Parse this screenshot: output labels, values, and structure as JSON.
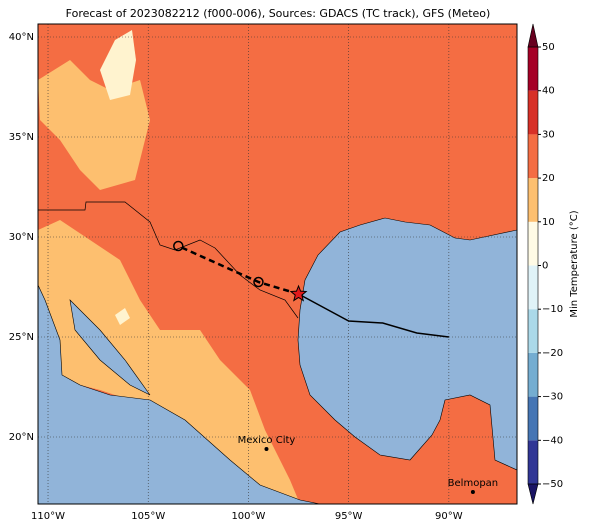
{
  "title": "Forecast of 2023082212 (f000-006), Sources: GDACS (TC track), GFS (Meteo)",
  "map": {
    "lon_range": [
      -110.5,
      -86.6
    ],
    "lat_range": [
      16.65,
      40.65
    ],
    "grid": true,
    "lon_ticks": [
      {
        "value": -110,
        "label": "110°W"
      },
      {
        "value": -105,
        "label": "105°W"
      },
      {
        "value": -100,
        "label": "100°W"
      },
      {
        "value": -95,
        "label": "95°W"
      },
      {
        "value": -90,
        "label": "90°W"
      }
    ],
    "lat_ticks": [
      {
        "value": 20,
        "label": "20°N"
      },
      {
        "value": 25,
        "label": "25°N"
      },
      {
        "value": 30,
        "label": "30°N"
      },
      {
        "value": 35,
        "label": "35°N"
      },
      {
        "value": 40,
        "label": "40°N"
      }
    ]
  },
  "colorbar": {
    "label": "Min Temperature (°C)",
    "range": [
      -50,
      50
    ],
    "levels": [
      -50,
      -40,
      -30,
      -20,
      -10,
      0,
      10,
      20,
      30,
      40,
      50
    ],
    "colors": [
      "#313695",
      "#4575b4",
      "#74add1",
      "#abd9e9",
      "#e0f3f8",
      "#fffbe6",
      "#fdbf6f",
      "#f46d43",
      "#d73027",
      "#a50026"
    ],
    "under_color": "#1a1464",
    "over_color": "#67001f",
    "ticks": [
      {
        "value": -50,
        "label": "−50"
      },
      {
        "value": -40,
        "label": "−40"
      },
      {
        "value": -30,
        "label": "−30"
      },
      {
        "value": -20,
        "label": "−20"
      },
      {
        "value": -10,
        "label": "−10"
      },
      0,
      10,
      20,
      30,
      40,
      50
    ]
  },
  "track": {
    "past": {
      "lon": [
        -97.5,
        -95,
        -93.3,
        -91.6,
        -90
      ],
      "lat": [
        27.15,
        25.8,
        25.7,
        25.2,
        25.0
      ]
    },
    "forecast": {
      "lon": [
        -97.5,
        -99.5,
        -103.5
      ],
      "lat": [
        27.15,
        27.75,
        29.55
      ]
    }
  },
  "cities": [
    {
      "name": "Mexico City",
      "lon": -99.1,
      "lat": 19.4
    },
    {
      "name": "Belmopan",
      "lon": -88.8,
      "lat": 17.25
    }
  ]
}
